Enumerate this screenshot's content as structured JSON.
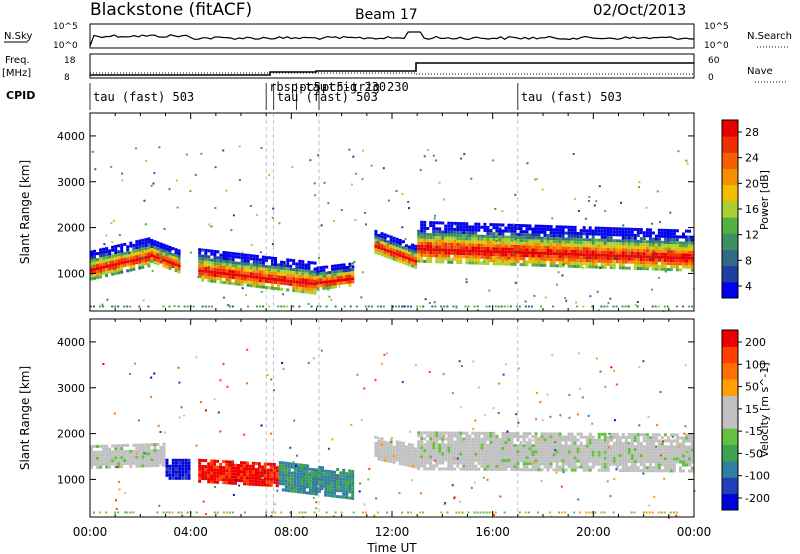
{
  "header": {
    "station": "Blackstone (fitACF)",
    "beam": "Beam 17",
    "date": "02/Oct/2013"
  },
  "panels": {
    "nsky_label": "N.Sky",
    "nsky_ticks": [
      "10^5",
      "10^0"
    ],
    "nsearch_label": "N.Search",
    "nsearch_ticks": [
      "10^5",
      "10^0"
    ],
    "freq_label_line1": "Freq.",
    "freq_label_line2": "[MHz]",
    "freq_ticks": [
      "18",
      "8"
    ],
    "nave_label": "Nave",
    "nave_ticks": [
      "60",
      "0"
    ],
    "cpid_label": "CPID"
  },
  "cpid_annotations": [
    {
      "text": "tau (fast) 503",
      "t": 0.0
    },
    {
      "text": "rbsp-tau",
      "t": 7.0
    },
    {
      "text": "pc5-trig 230",
      "t": 8.2
    },
    {
      "text": "tau (fast) 503",
      "t": 7.3
    },
    {
      "text": "pc5-trig 230",
      "t": 9.1
    },
    {
      "text": "tau (fast) 503",
      "t": 17.0
    }
  ],
  "colors": {
    "power_bar": [
      "#0000ee",
      "#1e3fa0",
      "#2f6a86",
      "#3e9060",
      "#56b040",
      "#a7d030",
      "#f0c000",
      "#f49000",
      "#f46000",
      "#ee3000",
      "#e80000"
    ],
    "velocity_bar": [
      "#0000dd",
      "#1f3fbb",
      "#2e7fa0",
      "#3fa050",
      "#66c040",
      "#c0c0c0",
      "#c0c0c0",
      "#ffa000",
      "#ff7000",
      "#ff4000",
      "#ee0000"
    ],
    "ground_scatter": "#c0c0c0"
  },
  "chart_data": [
    {
      "type": "heatmap",
      "name": "power",
      "xlabel": "Time UT",
      "ylabel": "Slant Range [km]",
      "xlim": [
        0,
        24
      ],
      "ylim": [
        180,
        4500
      ],
      "x_ticks": [
        "00:00",
        "04:00",
        "08:00",
        "12:00",
        "16:00",
        "20:00",
        "00:00"
      ],
      "y_ticks": [
        "1000",
        "2000",
        "3000",
        "4000"
      ],
      "colorbar_label": "Power [dB]",
      "colorbar_ticks": [
        "28",
        "24",
        "20",
        "16",
        "12",
        "8",
        "4"
      ],
      "colorbar_range": [
        0,
        30
      ],
      "bands": [
        {
          "t": [
            0.0,
            2.4
          ],
          "center": [
            1200,
            1500
          ],
          "width": 600
        },
        {
          "t": [
            2.4,
            3.6
          ],
          "center": [
            1500,
            1250
          ],
          "width": 500
        },
        {
          "t": [
            4.3,
            9.0
          ],
          "center": [
            1200,
            900
          ],
          "width": 700
        },
        {
          "t": [
            9.0,
            10.5
          ],
          "center": [
            900,
            1000
          ],
          "width": 500
        },
        {
          "t": [
            11.3,
            13.0
          ],
          "center": [
            1700,
            1350
          ],
          "width": 500
        },
        {
          "t": [
            13.0,
            24.0
          ],
          "center": [
            1700,
            1500
          ],
          "width": 900
        }
      ]
    },
    {
      "type": "heatmap",
      "name": "velocity",
      "xlabel": "Time UT",
      "ylabel": "Slant Range [km]",
      "xlim": [
        0,
        24
      ],
      "ylim": [
        180,
        4500
      ],
      "x_ticks": [
        "00:00",
        "04:00",
        "08:00",
        "12:00",
        "16:00",
        "20:00",
        "00:00"
      ],
      "y_ticks": [
        "1000",
        "2000",
        "3000",
        "4000"
      ],
      "colorbar_label": "Velocity [m s^-1]",
      "colorbar_ticks": [
        "200",
        "100",
        "50",
        "15",
        "-15",
        "-50",
        "-100",
        "-200"
      ],
      "colorbar_range": [
        -250,
        250
      ],
      "bands": [
        {
          "t": [
            0.0,
            3.0
          ],
          "center": [
            1500,
            1550
          ],
          "width": 500,
          "v": 0
        },
        {
          "t": [
            3.0,
            4.0
          ],
          "center": [
            1250,
            1250
          ],
          "width": 400,
          "v": -220
        },
        {
          "t": [
            4.3,
            7.5
          ],
          "center": [
            1200,
            1100
          ],
          "width": 500,
          "v": 220
        },
        {
          "t": [
            7.5,
            10.5
          ],
          "center": [
            1100,
            900
          ],
          "width": 600,
          "v": -120
        },
        {
          "t": [
            11.3,
            13.0
          ],
          "center": [
            1700,
            1500
          ],
          "width": 500,
          "v": 40
        },
        {
          "t": [
            13.0,
            24.0
          ],
          "center": [
            1650,
            1600
          ],
          "width": 800,
          "v": 0
        }
      ]
    }
  ]
}
